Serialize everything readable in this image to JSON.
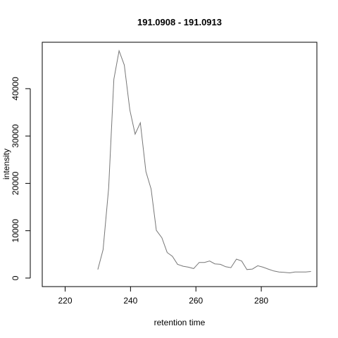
{
  "chart_data": {
    "type": "line",
    "title": "191.0908 - 191.0913",
    "xlabel": "retention time",
    "ylabel": "intensity",
    "xlim": [
      213,
      297
    ],
    "ylim": [
      -1800,
      49800
    ],
    "x_ticks": [
      220,
      240,
      260,
      280
    ],
    "y_ticks": [
      0,
      10000,
      20000,
      30000,
      40000
    ],
    "grid": false,
    "line_color": "#777777",
    "series": [
      {
        "x": [
          230.0,
          231.6,
          233.3,
          234.9,
          236.5,
          238.1,
          239.8,
          241.4,
          243.0,
          244.7,
          246.3,
          247.9,
          249.6,
          251.2,
          252.8,
          254.4,
          256.1,
          257.7,
          259.3,
          261.0,
          262.6,
          264.2,
          265.8,
          267.5,
          269.1,
          270.7,
          272.4,
          274.0,
          275.6,
          277.3,
          278.9,
          280.5,
          282.1,
          283.8,
          285.4,
          287.0,
          288.7,
          290.3,
          291.9,
          293.6,
          295.2
        ],
        "y": [
          1800,
          6000,
          19000,
          42000,
          48000,
          45000,
          35500,
          30400,
          32800,
          22500,
          18800,
          10100,
          8500,
          5400,
          4600,
          2900,
          2500,
          2300,
          2000,
          3300,
          3300,
          3600,
          3000,
          2900,
          2400,
          2200,
          4000,
          3600,
          1800,
          1900,
          2600,
          2300,
          1900,
          1500,
          1300,
          1200,
          1100,
          1300,
          1300,
          1300,
          1400
        ]
      }
    ]
  }
}
